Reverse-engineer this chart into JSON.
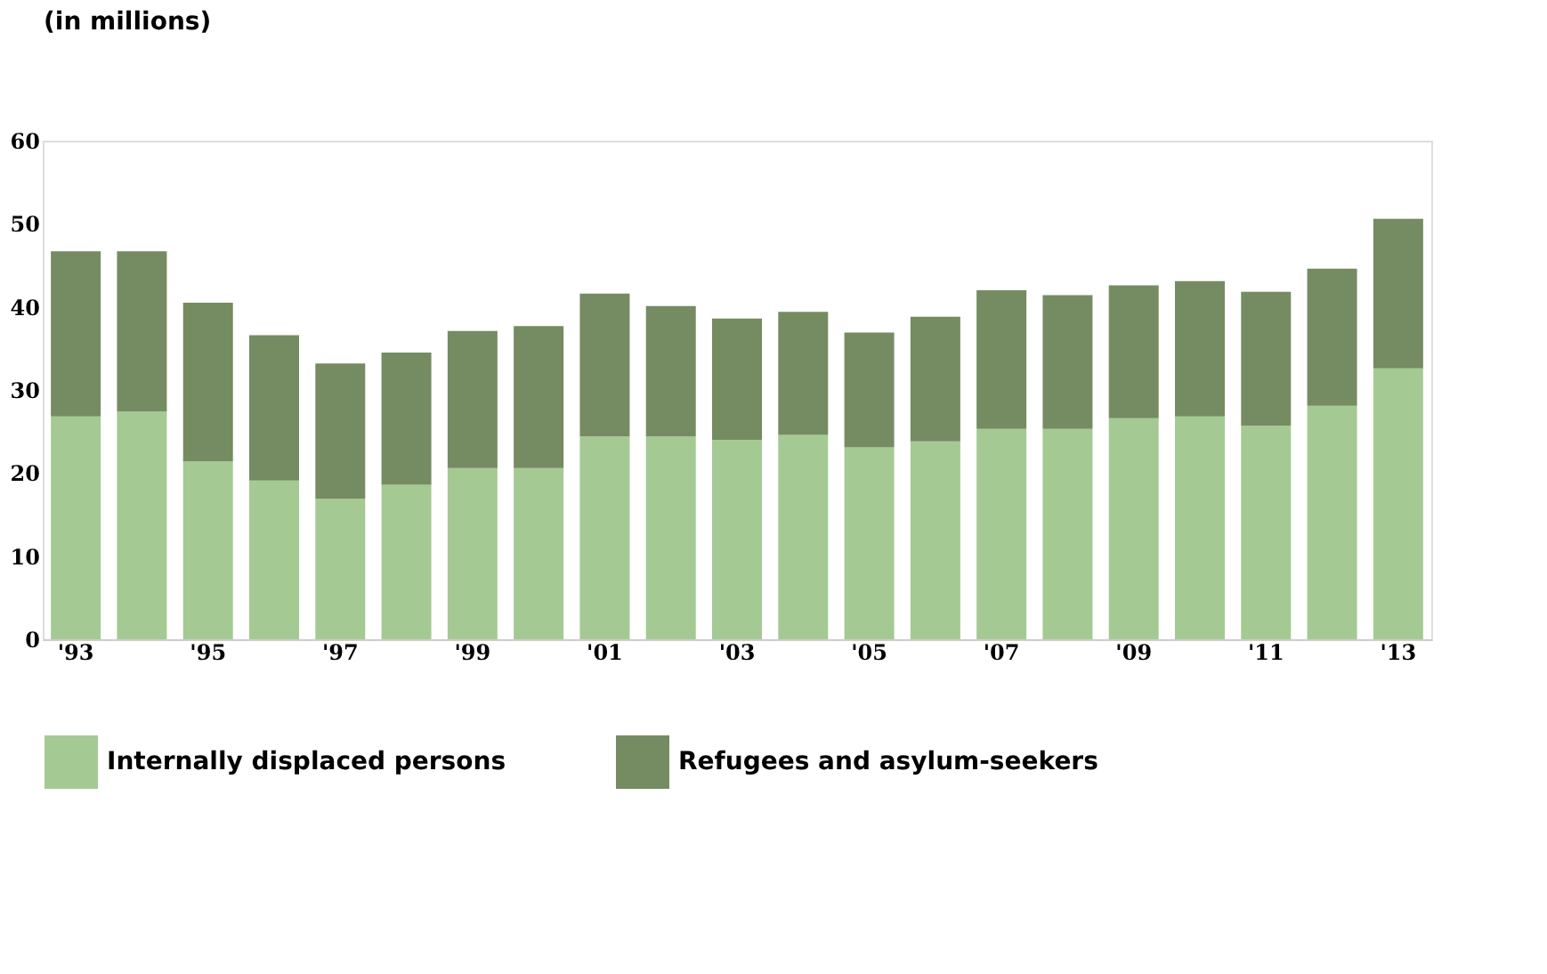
{
  "chart_data": {
    "type": "bar",
    "stacked": true,
    "ylabel": "(in millions)",
    "categories": [
      "'93",
      null,
      "'95",
      null,
      "'97",
      null,
      "'99",
      null,
      "'01",
      null,
      "'03",
      null,
      "'05",
      null,
      "'07",
      null,
      "'09",
      null,
      "'11",
      null,
      "'13"
    ],
    "series": [
      {
        "name": "Internally displaced persons",
        "color": "#a5c993",
        "values": [
          26.8,
          27.4,
          21.4,
          19.1,
          16.9,
          18.6,
          20.6,
          20.6,
          24.4,
          24.4,
          24.0,
          24.6,
          23.1,
          23.8,
          25.3,
          25.3,
          26.6,
          26.8,
          25.7,
          28.1,
          32.6
        ]
      },
      {
        "name": "Refugees and asylum-seekers",
        "color": "#758c62",
        "values": [
          19.9,
          19.3,
          19.1,
          17.5,
          16.3,
          15.9,
          16.5,
          17.1,
          17.2,
          15.7,
          14.6,
          14.8,
          13.8,
          15.0,
          16.7,
          16.1,
          16.0,
          16.3,
          16.1,
          16.5,
          18.0
        ]
      }
    ],
    "ylim": [
      0,
      60
    ],
    "yticks": [
      0,
      10,
      20,
      30,
      40,
      50,
      60
    ],
    "grid": false,
    "legend": "bottom"
  }
}
